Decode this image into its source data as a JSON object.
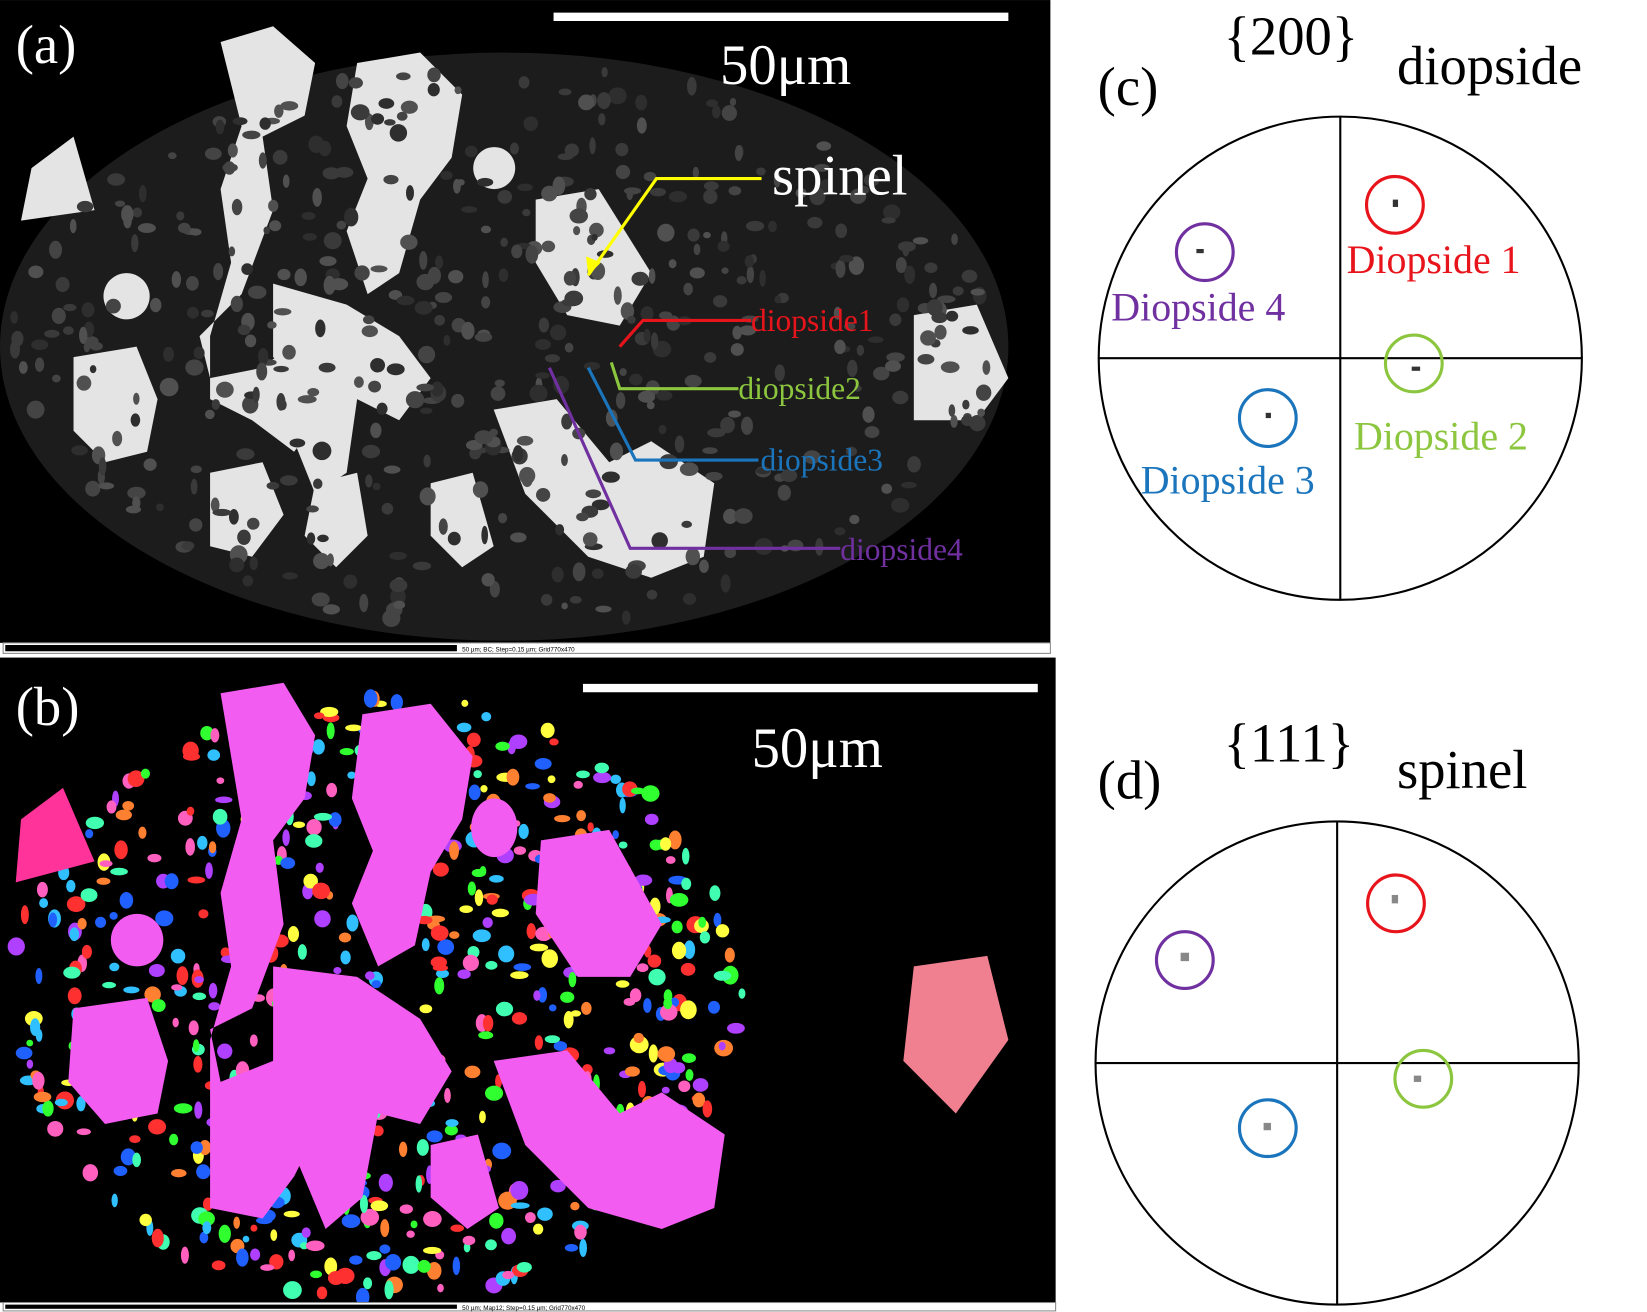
{
  "panel_a": {
    "label": "(a)",
    "scale_bar": "50μm",
    "spinel": "spinel",
    "diopside_labels": [
      "diopside1",
      "diopside2",
      "diopside3",
      "diopside4"
    ],
    "status": "50 µm; BC; Step=0.15 µm; Grid770x470"
  },
  "panel_b": {
    "label": "(b)",
    "scale_bar": "50μm",
    "status": "50 µm; Map12; Step=0.15 µm; Grid770x470"
  },
  "panel_c": {
    "label": "(c)",
    "plane": "{200}",
    "phase": "diopside",
    "labels": [
      "Diopside 1",
      "Diopside 2",
      "Diopside 3",
      "Diopside 4"
    ]
  },
  "panel_d": {
    "label": "(d)",
    "plane": "{111}",
    "phase": "spinel"
  }
}
